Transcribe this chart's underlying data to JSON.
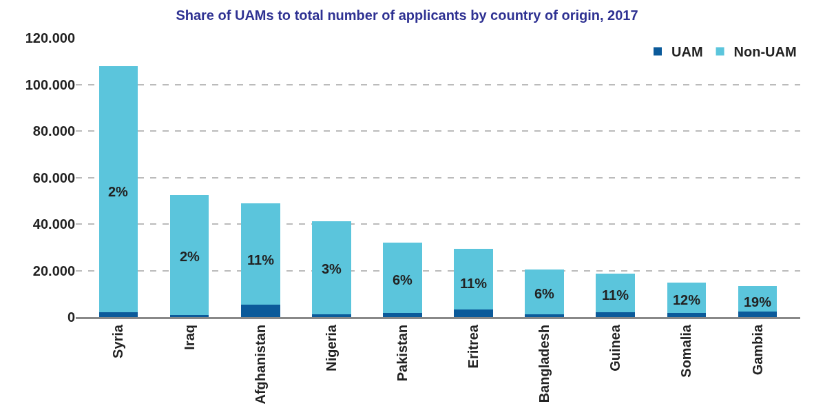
{
  "chart_data": {
    "type": "bar",
    "title": "Share of UAMs to total number of applicants by country of origin, 2017",
    "stacked": true,
    "categories": [
      "Syria",
      "Iraq",
      "Afghanistan",
      "Nigeria",
      "Pakistan",
      "Eritrea",
      "Bangladesh",
      "Guinea",
      "Somalia",
      "Gambia"
    ],
    "series": [
      {
        "name": "UAM",
        "color": "#0b5a9a",
        "values": [
          2200,
          1000,
          5400,
          1200,
          1900,
          3200,
          1200,
          2100,
          1800,
          2500
        ]
      },
      {
        "name": "Non-UAM",
        "color": "#5bc5dc",
        "values": [
          105800,
          51400,
          43600,
          40100,
          30100,
          26100,
          19200,
          16700,
          13000,
          10800
        ]
      }
    ],
    "ylim": [
      0,
      120000
    ],
    "yticks": [
      {
        "value": 0,
        "label": "0"
      },
      {
        "value": 20000,
        "label": "20.000"
      },
      {
        "value": 40000,
        "label": "40.000"
      },
      {
        "value": 60000,
        "label": "60.000"
      },
      {
        "value": 80000,
        "label": "80.000"
      },
      {
        "value": 100000,
        "label": "100.000"
      },
      {
        "value": 120000,
        "label": "120.000"
      }
    ],
    "grid": "y",
    "legend": "top right",
    "annotations": [
      "2%",
      "2%",
      "11%",
      "3%",
      "6%",
      "11%",
      "6%",
      "11%",
      "12%",
      "19%"
    ]
  }
}
